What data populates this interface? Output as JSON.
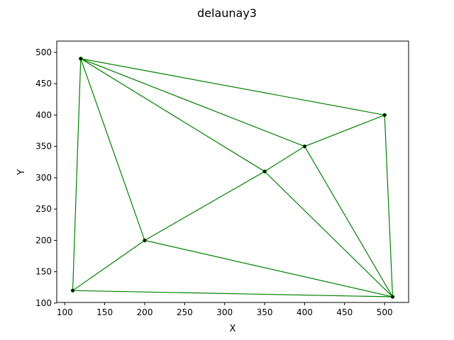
{
  "chart_data": {
    "type": "line",
    "title": "delaunay3",
    "xlabel": "X",
    "ylabel": "Y",
    "xlim": [
      90,
      530
    ],
    "ylim": [
      101,
      518
    ],
    "xticks": [
      100,
      150,
      200,
      250,
      300,
      350,
      400,
      450,
      500
    ],
    "yticks": [
      100,
      150,
      200,
      250,
      300,
      350,
      400,
      450,
      500
    ],
    "grid": false,
    "points": [
      {
        "x": 120,
        "y": 490
      },
      {
        "x": 500,
        "y": 400
      },
      {
        "x": 400,
        "y": 350
      },
      {
        "x": 350,
        "y": 310
      },
      {
        "x": 200,
        "y": 200
      },
      {
        "x": 110,
        "y": 120
      },
      {
        "x": 510,
        "y": 110
      }
    ],
    "edges": [
      [
        0,
        1
      ],
      [
        0,
        2
      ],
      [
        0,
        3
      ],
      [
        0,
        4
      ],
      [
        0,
        5
      ],
      [
        1,
        2
      ],
      [
        1,
        6
      ],
      [
        2,
        3
      ],
      [
        2,
        6
      ],
      [
        3,
        4
      ],
      [
        3,
        6
      ],
      [
        4,
        5
      ],
      [
        4,
        6
      ],
      [
        5,
        6
      ]
    ],
    "colors": {
      "edge": "#008000",
      "point": "#000000",
      "point_edge": "#008000"
    }
  }
}
